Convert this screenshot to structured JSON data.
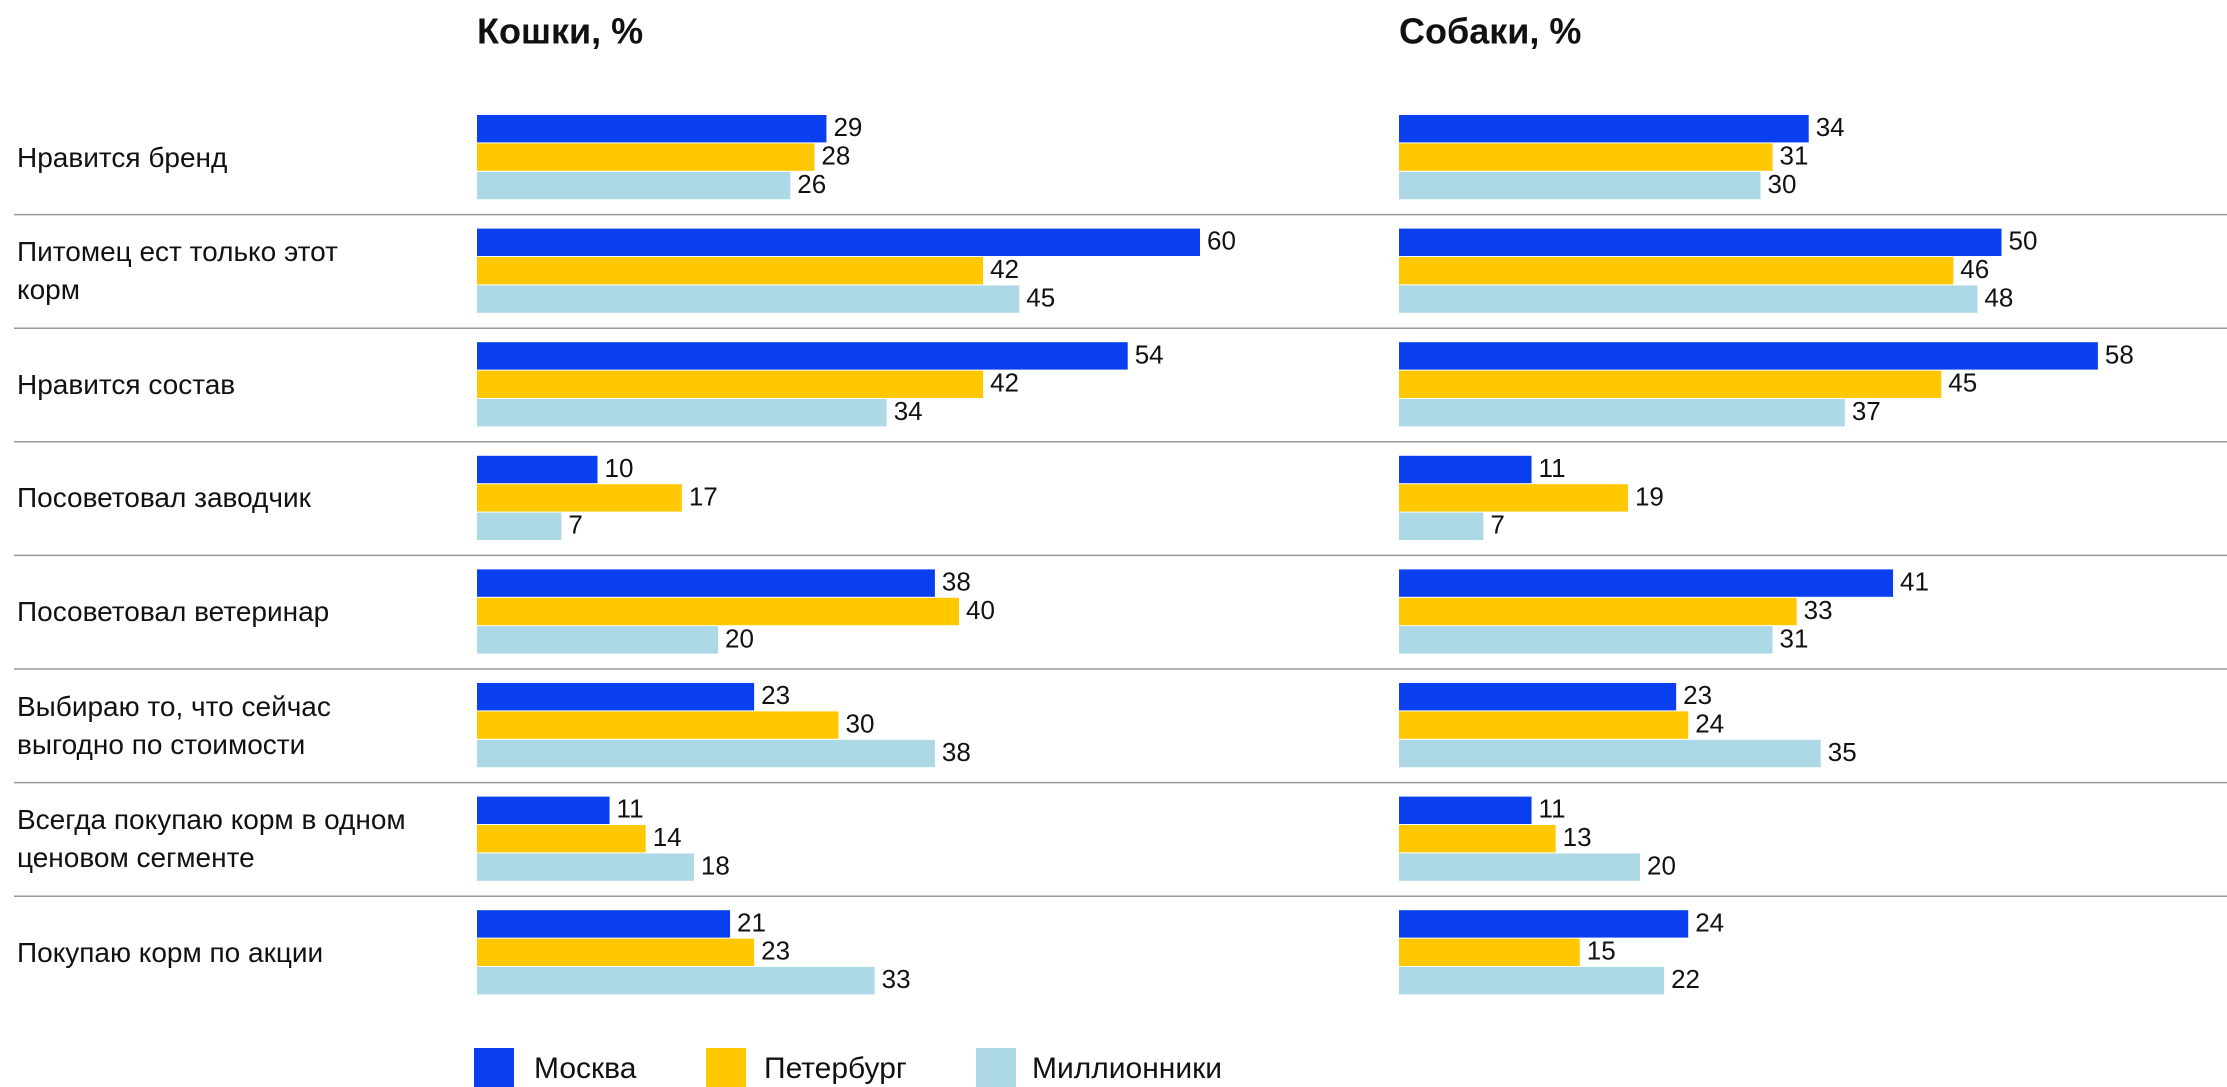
{
  "chart_data": [
    {
      "type": "bar",
      "title": "Кошки, %",
      "categories": [
        "Нравится бренд",
        "Питомец ест только этот корм",
        "Нравится состав",
        "Посоветовал  заводчик",
        "Посоветовал  ветеринар",
        "Выбираю то, что сейчас выгодно по стоимости",
        "Всегда покупаю корм в одном ценовом сегменте",
        "Покупаю корм по акции"
      ],
      "series": [
        {
          "name": "Москва",
          "color": "#0a3ff0",
          "values": [
            29,
            60,
            54,
            10,
            38,
            23,
            11,
            21
          ]
        },
        {
          "name": "Петербург",
          "color": "#ffc800",
          "values": [
            28,
            42,
            42,
            17,
            40,
            30,
            14,
            23
          ]
        },
        {
          "name": "Миллионники",
          "color": "#add8e6",
          "values": [
            26,
            45,
            34,
            7,
            20,
            38,
            18,
            33
          ]
        }
      ]
    },
    {
      "type": "bar",
      "title": "Собаки, %",
      "series": [
        {
          "color": "#0a3ff0",
          "values": [
            34,
            50,
            58,
            11,
            41,
            23,
            11,
            24
          ]
        },
        {
          "color": "#ffc800",
          "values": [
            31,
            46,
            45,
            19,
            33,
            24,
            13,
            15
          ]
        },
        {
          "color": "#add8e6",
          "values": [
            30,
            48,
            37,
            7,
            31,
            35,
            20,
            22
          ]
        }
      ]
    }
  ]
}
